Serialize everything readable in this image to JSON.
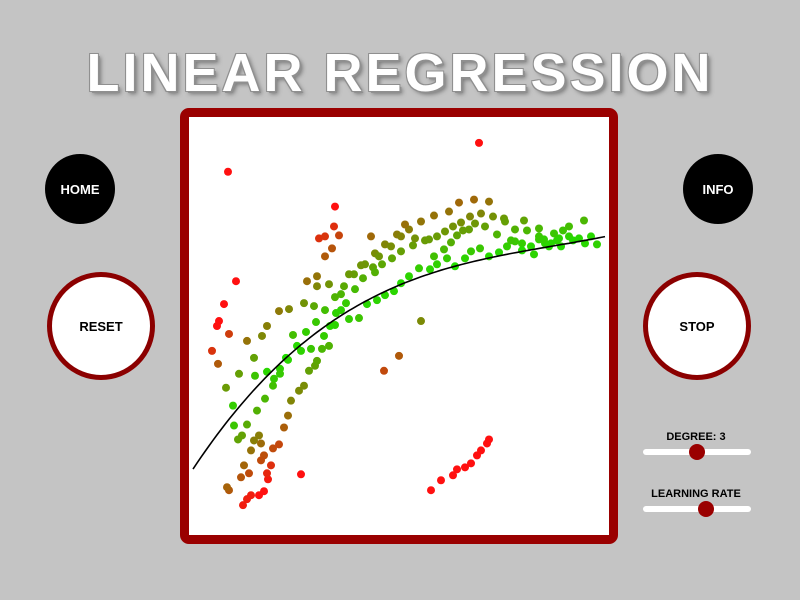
{
  "header": {
    "title": "LINEAR REGRESSION"
  },
  "buttons": {
    "home": "HOME",
    "info": "INFO",
    "reset": "RESET",
    "stop": "STOP"
  },
  "sliders": {
    "degree": {
      "label": "DEGREE: 3",
      "value": 0.5
    },
    "learning_rate": {
      "label": "LEARNING RATE",
      "value": 0.58
    }
  },
  "colors": {
    "accent": "#9a0000",
    "point_fit": "#22dd00",
    "point_outlier": "#ff1a1a",
    "background": "#c4c4c4"
  },
  "chart_data": {
    "type": "scatter",
    "xlim": [
      0,
      420
    ],
    "ylim": [
      0,
      420
    ],
    "points": [
      [
        40,
        45
      ],
      [
        38,
        48
      ],
      [
        30,
        215
      ],
      [
        40,
        202
      ],
      [
        50,
        162
      ],
      [
        58,
        195
      ],
      [
        65,
        178
      ],
      [
        73,
        200
      ],
      [
        66,
        160
      ],
      [
        78,
        164
      ],
      [
        85,
        157
      ],
      [
        91,
        167
      ],
      [
        97,
        178
      ],
      [
        104,
        201
      ],
      [
        112,
        185
      ],
      [
        122,
        187
      ],
      [
        126,
        170
      ],
      [
        135,
        200
      ],
      [
        140,
        190
      ],
      [
        146,
        211
      ],
      [
        152,
        226
      ],
      [
        160,
        217
      ],
      [
        170,
        218
      ],
      [
        178,
        232
      ],
      [
        188,
        236
      ],
      [
        196,
        241
      ],
      [
        205,
        245
      ],
      [
        212,
        253
      ],
      [
        220,
        260
      ],
      [
        230,
        268
      ],
      [
        241,
        267
      ],
      [
        248,
        272
      ],
      [
        258,
        278
      ],
      [
        266,
        270
      ],
      [
        276,
        278
      ],
      [
        282,
        285
      ],
      [
        291,
        288
      ],
      [
        300,
        280
      ],
      [
        310,
        284
      ],
      [
        318,
        290
      ],
      [
        326,
        295
      ],
      [
        333,
        293
      ],
      [
        342,
        290
      ],
      [
        350,
        297
      ],
      [
        360,
        290
      ],
      [
        370,
        298
      ],
      [
        380,
        300
      ],
      [
        390,
        298
      ],
      [
        49,
        96
      ],
      [
        58,
        111
      ],
      [
        68,
        125
      ],
      [
        76,
        137
      ],
      [
        84,
        150
      ],
      [
        91,
        162
      ],
      [
        99,
        176
      ],
      [
        108,
        190
      ],
      [
        117,
        204
      ],
      [
        127,
        214
      ],
      [
        136,
        226
      ],
      [
        146,
        239
      ],
      [
        155,
        250
      ],
      [
        165,
        262
      ],
      [
        176,
        272
      ],
      [
        186,
        283
      ],
      [
        196,
        292
      ],
      [
        208,
        302
      ],
      [
        220,
        307
      ],
      [
        232,
        315
      ],
      [
        245,
        321
      ],
      [
        260,
        325
      ],
      [
        270,
        334
      ],
      [
        285,
        337
      ],
      [
        300,
        335
      ],
      [
        315,
        318
      ],
      [
        335,
        316
      ],
      [
        350,
        308
      ],
      [
        365,
        303
      ],
      [
        380,
        310
      ],
      [
        395,
        316
      ],
      [
        45,
        110
      ],
      [
        55,
        70
      ],
      [
        62,
        85
      ],
      [
        65,
        95
      ],
      [
        70,
        100
      ],
      [
        72,
        92
      ],
      [
        75,
        80
      ],
      [
        79,
        56
      ],
      [
        84,
        87
      ],
      [
        90,
        91
      ],
      [
        95,
        108
      ],
      [
        99,
        120
      ],
      [
        102,
        135
      ],
      [
        110,
        145
      ],
      [
        115,
        150
      ],
      [
        120,
        165
      ],
      [
        128,
        175
      ],
      [
        133,
        187
      ],
      [
        141,
        210
      ],
      [
        147,
        223
      ],
      [
        157,
        233
      ],
      [
        166,
        247
      ],
      [
        174,
        258
      ],
      [
        184,
        269
      ],
      [
        193,
        272
      ],
      [
        203,
        278
      ],
      [
        212,
        285
      ],
      [
        224,
        291
      ],
      [
        236,
        296
      ],
      [
        248,
        300
      ],
      [
        256,
        305
      ],
      [
        264,
        310
      ],
      [
        272,
        314
      ],
      [
        281,
        320
      ],
      [
        292,
        323
      ],
      [
        304,
        320
      ],
      [
        316,
        315
      ],
      [
        326,
        307
      ],
      [
        338,
        306
      ],
      [
        350,
        300
      ],
      [
        356,
        293
      ],
      [
        368,
        296
      ],
      [
        372,
        290
      ],
      [
        54,
        30
      ],
      [
        58,
        36
      ],
      [
        62,
        40
      ],
      [
        70,
        40
      ],
      [
        75,
        44
      ],
      [
        52,
        58
      ],
      [
        60,
        62
      ],
      [
        72,
        75
      ],
      [
        78,
        62
      ],
      [
        82,
        70
      ],
      [
        112,
        61
      ],
      [
        118,
        255
      ],
      [
        128,
        260
      ],
      [
        136,
        280
      ],
      [
        143,
        288
      ],
      [
        150,
        301
      ],
      [
        195,
        165
      ],
      [
        210,
        180
      ],
      [
        232,
        215
      ],
      [
        242,
        45
      ],
      [
        252,
        55
      ],
      [
        264,
        60
      ],
      [
        268,
        66
      ],
      [
        276,
        68
      ],
      [
        282,
        72
      ],
      [
        288,
        80
      ],
      [
        292,
        85
      ],
      [
        298,
        92
      ],
      [
        300,
        96
      ],
      [
        39,
        365
      ],
      [
        130,
        298
      ],
      [
        136,
        300
      ],
      [
        145,
        310
      ],
      [
        146,
        330
      ],
      [
        290,
        394
      ],
      [
        182,
        300
      ],
      [
        47,
        255
      ],
      [
        35,
        232
      ],
      [
        28,
        210
      ],
      [
        23,
        185
      ],
      [
        29,
        172
      ],
      [
        37,
        148
      ],
      [
        44,
        130
      ],
      [
        53,
        100
      ],
      [
        78,
        210
      ],
      [
        90,
        225
      ],
      [
        100,
        227
      ],
      [
        115,
        233
      ],
      [
        125,
        230
      ],
      [
        128,
        250
      ],
      [
        140,
        252
      ],
      [
        152,
        242
      ],
      [
        160,
        262
      ],
      [
        172,
        271
      ],
      [
        186,
        264
      ],
      [
        190,
        280
      ],
      [
        202,
        290
      ],
      [
        212,
        300
      ],
      [
        216,
        312
      ],
      [
        226,
        298
      ],
      [
        240,
        297
      ],
      [
        245,
        280
      ],
      [
        255,
        287
      ],
      [
        262,
        294
      ],
      [
        268,
        301
      ],
      [
        274,
        306
      ],
      [
        280,
        307
      ],
      [
        286,
        313
      ],
      [
        296,
        310
      ],
      [
        308,
        302
      ],
      [
        322,
        296
      ],
      [
        333,
        286
      ],
      [
        345,
        282
      ],
      [
        355,
        297
      ],
      [
        362,
        293
      ],
      [
        374,
        306
      ],
      [
        384,
        296
      ],
      [
        396,
        293
      ],
      [
        402,
        300
      ],
      [
        408,
        292
      ]
    ],
    "curve": {
      "type": "polynomial",
      "degree": 3
    },
    "grid": false
  }
}
